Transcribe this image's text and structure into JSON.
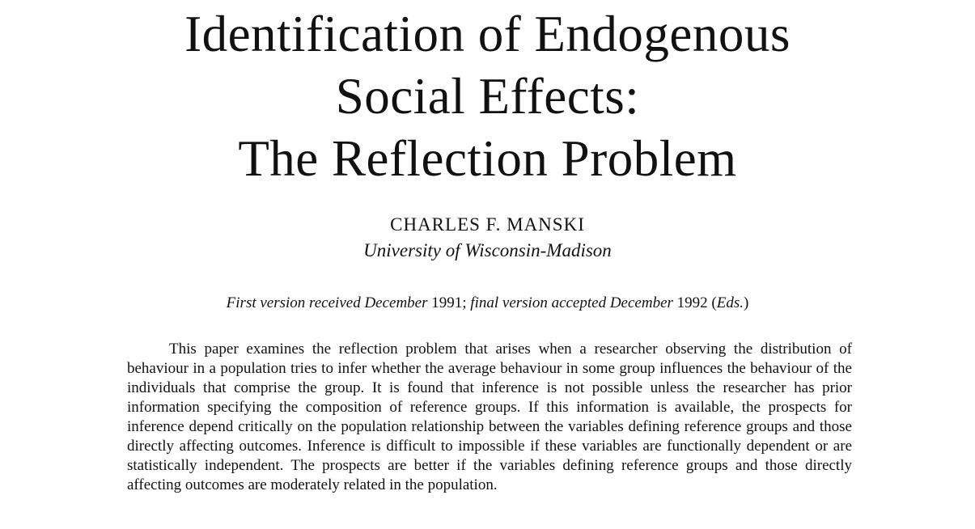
{
  "title_lines": [
    "Identification of Endogenous",
    "Social Effects:",
    "The Reflection Problem"
  ],
  "author": "CHARLES F. MANSKI",
  "affiliation": "University of Wisconsin-Madison",
  "received": {
    "part1": "First version received December",
    "year1": " 1991; ",
    "part2": "final version accepted December",
    "year2": " 1992 (",
    "eds": "Eds.",
    "close": ")"
  },
  "abstract": "This paper examines the reflection problem that arises when a researcher observing the distribution of behaviour in a population tries to infer whether the average behaviour in some group influences the behaviour of the individuals that comprise the group. It is found that inference is not possible unless the researcher has prior information specifying the composition of reference groups. If this information is available, the prospects for inference depend critically on the population relationship between the variables defining reference groups and those directly affecting outcomes. Inference is difficult to impossible if these variables are functionally dependent or are statistically independent. The prospects are better if the variables defining reference groups and those directly affecting outcomes are moderately related in the population."
}
